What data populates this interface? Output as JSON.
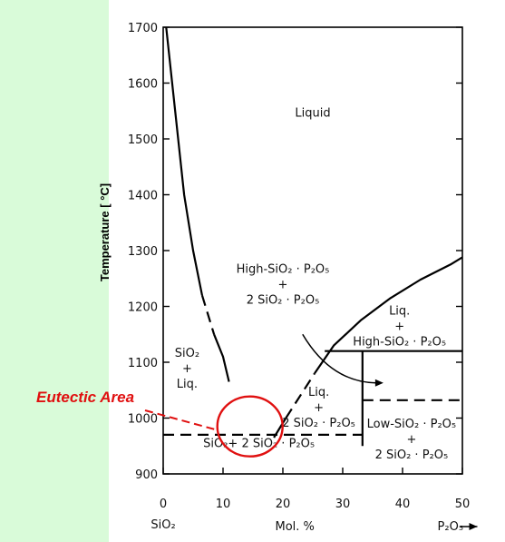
{
  "chart_data": {
    "type": "line",
    "title": "",
    "ylabel": "Temperature  [ °C]",
    "xlabel": "Mol. %",
    "x_end_labels": {
      "left": "SiO₂",
      "right": "P₂O₅"
    },
    "xlim": [
      0,
      50
    ],
    "ylim": [
      900,
      1700
    ],
    "x_ticks": [
      0,
      10,
      20,
      30,
      40,
      50
    ],
    "y_ticks": [
      900,
      1000,
      1100,
      1200,
      1300,
      1400,
      1500,
      1600,
      1700
    ],
    "x_tick_labels": [
      "0",
      "10",
      "20",
      "30",
      "40",
      "50"
    ],
    "y_tick_labels": [
      "900",
      "1000",
      "1100",
      "1200",
      "1300",
      "1400",
      "1500",
      "1600",
      "1700"
    ],
    "grid": false,
    "series": [
      {
        "style": "solid",
        "points": [
          [
            0.5,
            1700
          ],
          [
            1.5,
            1600
          ],
          [
            2.5,
            1500
          ],
          [
            3.5,
            1400
          ],
          [
            5,
            1300
          ],
          [
            6.5,
            1220
          ]
        ]
      },
      {
        "style": "dashed",
        "points": [
          [
            6.5,
            1220
          ],
          [
            8.5,
            1150
          ]
        ]
      },
      {
        "style": "solid",
        "points": [
          [
            8.5,
            1150
          ],
          [
            10,
            1110
          ],
          [
            11,
            1065
          ]
        ]
      },
      {
        "style": "solid",
        "points": [
          [
            18.5,
            965
          ],
          [
            20.5,
            1000
          ]
        ]
      },
      {
        "style": "dashed",
        "points": [
          [
            20.5,
            1000
          ],
          [
            25.3,
            1080
          ]
        ]
      },
      {
        "style": "solid",
        "points": [
          [
            25.3,
            1080
          ],
          [
            28.5,
            1130
          ],
          [
            33,
            1175
          ],
          [
            38,
            1215
          ],
          [
            43,
            1248
          ],
          [
            48,
            1275
          ],
          [
            50,
            1288
          ]
        ]
      },
      {
        "style": "solid",
        "points": [
          [
            27,
            1120
          ],
          [
            50,
            1120
          ]
        ]
      },
      {
        "style": "solid",
        "points": [
          [
            33.3,
            1120
          ],
          [
            33.3,
            950
          ]
        ]
      },
      {
        "style": "dashed",
        "points": [
          [
            0,
            970
          ],
          [
            33.3,
            970
          ]
        ]
      },
      {
        "style": "dashed",
        "points": [
          [
            33.3,
            1032
          ],
          [
            50,
            1032
          ]
        ]
      }
    ],
    "region_labels": [
      {
        "lines": [
          "Liquid"
        ],
        "x": 25,
        "y": 1540
      },
      {
        "lines": [
          "High-SiO₂ · P₂O₅",
          "+",
          "2 SiO₂ · P₂O₅"
        ],
        "x": 20,
        "y": 1260
      },
      {
        "lines": [
          "SiO₂",
          "+",
          "Liq."
        ],
        "x": 4,
        "y": 1110
      },
      {
        "lines": [
          "Liq.",
          "+",
          "High-SiO₂ · P₂O₅"
        ],
        "x": 39.5,
        "y": 1185
      },
      {
        "lines": [
          "Liq.",
          "+",
          "2 SiO₂ · P₂O₅"
        ],
        "x": 26,
        "y": 1040
      },
      {
        "lines": [
          "Low-SiO₂ · P₂O₅",
          "+",
          "2 SiO₂ · P₂O₅"
        ],
        "x": 41.5,
        "y": 983
      },
      {
        "lines": [
          "SiO₂+ 2 SiO₂ · P₂O₅"
        ],
        "x": 16,
        "y": 948
      }
    ],
    "annotation": {
      "text": "Eutectic Area",
      "x": 14.5,
      "y": 985
    }
  }
}
